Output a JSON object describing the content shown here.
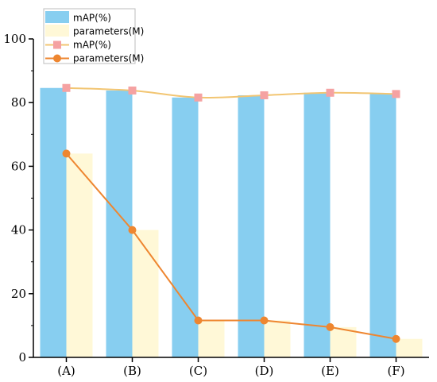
{
  "chart_data": {
    "type": "bar",
    "categories": [
      "(A)",
      "(B)",
      "(C)",
      "(D)",
      "(E)",
      "(F)"
    ],
    "x_ticks": [
      "(A)",
      "(B)",
      "(C)",
      "(D)",
      "(E)",
      "(F)"
    ],
    "y_ticks": [
      "0",
      "20",
      "40",
      "60",
      "80",
      "100"
    ],
    "ylim": [
      0,
      100
    ],
    "grid": false,
    "legend_position": "top-left",
    "series": [
      {
        "name": "mAP(%)",
        "kind": "bar",
        "color": "#87cef0",
        "values": [
          84.6,
          83.8,
          81.6,
          82.3,
          83.1,
          82.7
        ]
      },
      {
        "name": "parameters(M)",
        "kind": "bar",
        "color": "#fff8d7",
        "values": [
          64.0,
          40.0,
          11.6,
          11.6,
          9.5,
          5.8
        ]
      },
      {
        "name": "mAP(%)",
        "kind": "line",
        "color": "#f2c572",
        "marker_color": "#f5a2a2",
        "marker": "square",
        "values": [
          84.6,
          83.8,
          81.6,
          82.3,
          83.1,
          82.7
        ]
      },
      {
        "name": "parameters(M)",
        "kind": "line",
        "color": "#ee8630",
        "marker_color": "#ee8630",
        "marker": "circle",
        "values": [
          64.0,
          40.0,
          11.6,
          11.6,
          9.5,
          5.8
        ]
      }
    ]
  }
}
